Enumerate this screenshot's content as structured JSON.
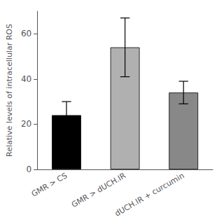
{
  "chart_data": {
    "type": "bar",
    "categories": [
      "GMR > CS",
      "GMR > dUCH.IR",
      "dUCH.IR + curcumin"
    ],
    "values": [
      24,
      54,
      34
    ],
    "errors": [
      6,
      13,
      5
    ],
    "colors": [
      "#000000",
      "#b0b0b0",
      "#888888"
    ],
    "ylabel": "Relative levels of intracellular ROS",
    "ylim": [
      0,
      70
    ],
    "yticks": [
      0,
      20,
      40,
      60
    ],
    "grid": false
  }
}
